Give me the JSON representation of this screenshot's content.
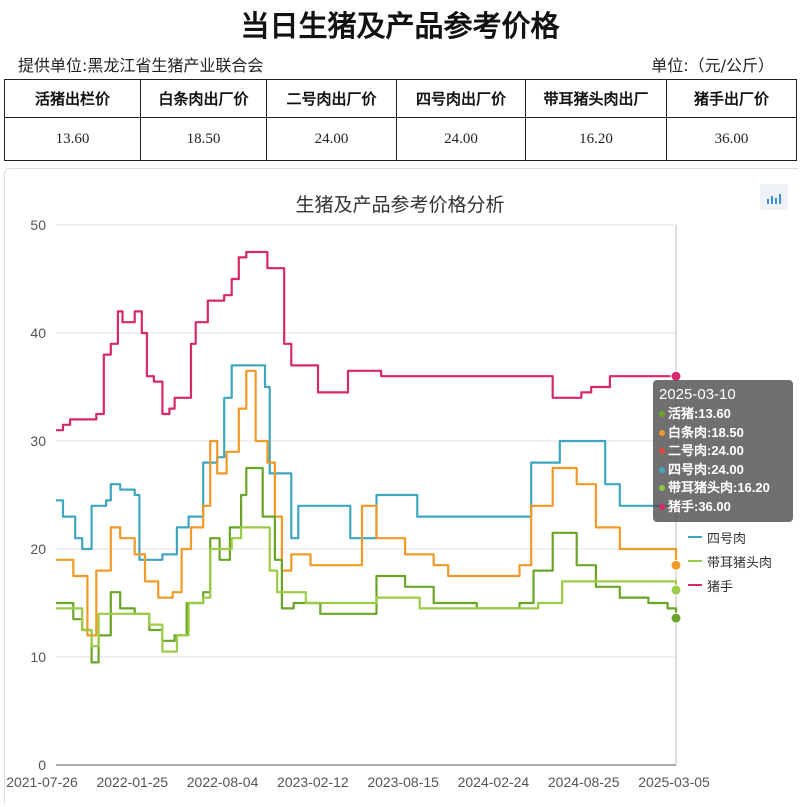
{
  "header": {
    "title": "当日生猪及产品参考价格",
    "provider": "提供单位:黑龙江省生猪产业联合会",
    "unit": "单位:（元/公斤）"
  },
  "price_table": {
    "headers": [
      "活猪出栏价",
      "白条肉出厂价",
      "二号肉出厂价",
      "四号肉出厂价",
      "带耳猪头肉出厂",
      "猪手出厂价"
    ],
    "values": [
      "13.60",
      "18.50",
      "24.00",
      "24.00",
      "16.20",
      "36.00"
    ]
  },
  "tooltip": {
    "date": "2025-03-10",
    "rows": [
      {
        "label": "活猪:13.60",
        "color": "#6aa527"
      },
      {
        "label": "白条肉:18.50",
        "color": "#f09a28"
      },
      {
        "label": "二号肉:24.00",
        "color": "#e2453c"
      },
      {
        "label": "四号肉:24.00",
        "color": "#3ea7c0"
      },
      {
        "label": "带耳猪头肉:16.20",
        "color": "#8dc63f"
      },
      {
        "label": "猪手:36.00",
        "color": "#d6286a"
      }
    ]
  },
  "legend": {
    "items": [
      {
        "label": "四号肉",
        "color": "#3ea7c0"
      },
      {
        "label": "带耳猪头肉",
        "color": "#9ccc45"
      },
      {
        "label": "猪手",
        "color": "#d6286a"
      }
    ]
  },
  "chart_data": {
    "type": "line",
    "title": "生猪及产品参考价格分析",
    "ylim": [
      0,
      50
    ],
    "yticks": [
      0,
      10,
      20,
      30,
      40,
      50
    ],
    "x_tick_labels": [
      "2021-07-26",
      "2022-01-25",
      "2022-08-04",
      "2023-02-12",
      "2023-08-15",
      "2024-02-24",
      "2024-08-25",
      "2025-03-05"
    ],
    "x_range": [
      "2021-07-26",
      "2025-03-10"
    ],
    "series": [
      {
        "name": "猪手",
        "color": "#d6286a",
        "points": [
          [
            "2021-07-26",
            31
          ],
          [
            "2021-08-10",
            31.5
          ],
          [
            "2021-08-25",
            32
          ],
          [
            "2021-10-20",
            32.5
          ],
          [
            "2021-11-05",
            38
          ],
          [
            "2021-11-20",
            39
          ],
          [
            "2021-12-05",
            42
          ],
          [
            "2021-12-15",
            41
          ],
          [
            "2022-01-10",
            42
          ],
          [
            "2022-01-25",
            40
          ],
          [
            "2022-02-05",
            36
          ],
          [
            "2022-02-20",
            35.5
          ],
          [
            "2022-03-10",
            32.5
          ],
          [
            "2022-03-25",
            33
          ],
          [
            "2022-04-05",
            34
          ],
          [
            "2022-05-10",
            39
          ],
          [
            "2022-05-20",
            41
          ],
          [
            "2022-06-15",
            43
          ],
          [
            "2022-07-20",
            43.5
          ],
          [
            "2022-08-05",
            45
          ],
          [
            "2022-08-20",
            47
          ],
          [
            "2022-09-05",
            47.5
          ],
          [
            "2022-10-20",
            46
          ],
          [
            "2022-11-25",
            39
          ],
          [
            "2022-12-10",
            37
          ],
          [
            "2023-02-05",
            34.5
          ],
          [
            "2023-04-10",
            36.5
          ],
          [
            "2023-06-10",
            36.5
          ],
          [
            "2023-06-20",
            36
          ],
          [
            "2024-06-20",
            34
          ],
          [
            "2024-08-20",
            34.5
          ],
          [
            "2024-09-10",
            35
          ],
          [
            "2024-10-20",
            36
          ],
          [
            "2025-03-10",
            36
          ]
        ]
      },
      {
        "name": "四号肉",
        "color": "#3ea7c0",
        "points": [
          [
            "2021-07-26",
            24.5
          ],
          [
            "2021-08-10",
            23
          ],
          [
            "2021-09-05",
            21
          ],
          [
            "2021-09-20",
            20
          ],
          [
            "2021-10-10",
            24
          ],
          [
            "2021-11-10",
            24.5
          ],
          [
            "2021-11-20",
            26
          ],
          [
            "2021-12-10",
            25.5
          ],
          [
            "2022-01-10",
            25
          ],
          [
            "2022-01-20",
            19
          ],
          [
            "2022-03-10",
            19.5
          ],
          [
            "2022-04-10",
            22
          ],
          [
            "2022-05-05",
            23
          ],
          [
            "2022-06-05",
            28
          ],
          [
            "2022-07-05",
            28.5
          ],
          [
            "2022-07-20",
            34
          ],
          [
            "2022-08-05",
            37
          ],
          [
            "2022-10-15",
            35
          ],
          [
            "2022-10-25",
            27
          ],
          [
            "2022-12-10",
            21
          ],
          [
            "2022-12-25",
            24
          ],
          [
            "2023-04-15",
            21
          ],
          [
            "2023-06-10",
            25
          ],
          [
            "2023-09-05",
            23
          ],
          [
            "2024-04-05",
            23
          ],
          [
            "2024-05-05",
            28
          ],
          [
            "2024-07-05",
            30
          ],
          [
            "2024-10-10",
            26
          ],
          [
            "2024-11-10",
            24
          ],
          [
            "2025-03-10",
            24
          ]
        ]
      },
      {
        "name": "白条肉",
        "color": "#f09a28",
        "points": [
          [
            "2021-07-26",
            19
          ],
          [
            "2021-09-01",
            17.5
          ],
          [
            "2021-10-01",
            12
          ],
          [
            "2021-10-20",
            18
          ],
          [
            "2021-11-20",
            22
          ],
          [
            "2021-12-10",
            21
          ],
          [
            "2022-01-10",
            19.5
          ],
          [
            "2022-02-01",
            17
          ],
          [
            "2022-03-01",
            15.5
          ],
          [
            "2022-04-01",
            16
          ],
          [
            "2022-04-20",
            20
          ],
          [
            "2022-05-10",
            22
          ],
          [
            "2022-06-05",
            24
          ],
          [
            "2022-06-20",
            30
          ],
          [
            "2022-07-05",
            27
          ],
          [
            "2022-07-25",
            29
          ],
          [
            "2022-08-20",
            33
          ],
          [
            "2022-09-05",
            36.5
          ],
          [
            "2022-09-25",
            30
          ],
          [
            "2022-10-20",
            28
          ],
          [
            "2022-11-05",
            23
          ],
          [
            "2022-11-20",
            18
          ],
          [
            "2022-12-10",
            19.5
          ],
          [
            "2023-01-20",
            18.5
          ],
          [
            "2023-04-20",
            18.5
          ],
          [
            "2023-05-10",
            24
          ],
          [
            "2023-06-10",
            21
          ],
          [
            "2023-08-10",
            19.5
          ],
          [
            "2023-10-10",
            18.5
          ],
          [
            "2023-11-10",
            17.5
          ],
          [
            "2024-03-10",
            17.5
          ],
          [
            "2024-04-10",
            18.5
          ],
          [
            "2024-05-05",
            24
          ],
          [
            "2024-06-20",
            27.5
          ],
          [
            "2024-08-10",
            26
          ],
          [
            "2024-09-20",
            22
          ],
          [
            "2024-11-10",
            20
          ],
          [
            "2025-01-10",
            20
          ],
          [
            "2025-02-10",
            20
          ],
          [
            "2025-03-10",
            18.5
          ]
        ]
      },
      {
        "name": "活猪",
        "color": "#6aa527",
        "points": [
          [
            "2021-07-26",
            15
          ],
          [
            "2021-09-01",
            13.5
          ],
          [
            "2021-09-20",
            12.5
          ],
          [
            "2021-10-10",
            9.5
          ],
          [
            "2021-10-25",
            12
          ],
          [
            "2021-11-20",
            16
          ],
          [
            "2021-12-10",
            14.5
          ],
          [
            "2022-01-10",
            14
          ],
          [
            "2022-02-10",
            12.5
          ],
          [
            "2022-03-10",
            11.5
          ],
          [
            "2022-04-05",
            12
          ],
          [
            "2022-05-01",
            15
          ],
          [
            "2022-06-05",
            16
          ],
          [
            "2022-06-20",
            21
          ],
          [
            "2022-07-10",
            19
          ],
          [
            "2022-08-01",
            22
          ],
          [
            "2022-08-25",
            25
          ],
          [
            "2022-09-05",
            27.5
          ],
          [
            "2022-10-10",
            23
          ],
          [
            "2022-11-05",
            19
          ],
          [
            "2022-11-20",
            14.5
          ],
          [
            "2022-12-15",
            15
          ],
          [
            "2023-02-10",
            14
          ],
          [
            "2023-05-10",
            14
          ],
          [
            "2023-06-10",
            17.5
          ],
          [
            "2023-08-10",
            16.5
          ],
          [
            "2023-10-10",
            15
          ],
          [
            "2024-01-10",
            14.5
          ],
          [
            "2024-04-10",
            15
          ],
          [
            "2024-05-10",
            18
          ],
          [
            "2024-06-20",
            21.5
          ],
          [
            "2024-08-10",
            18.5
          ],
          [
            "2024-09-20",
            16.5
          ],
          [
            "2024-11-10",
            15.5
          ],
          [
            "2025-01-10",
            15
          ],
          [
            "2025-02-20",
            14.5
          ],
          [
            "2025-03-10",
            13.6
          ]
        ]
      },
      {
        "name": "带耳猪头肉",
        "color": "#9ccc45",
        "points": [
          [
            "2021-07-26",
            14.5
          ],
          [
            "2021-09-01",
            14.5
          ],
          [
            "2021-09-20",
            12.5
          ],
          [
            "2021-10-10",
            11
          ],
          [
            "2021-10-25",
            14
          ],
          [
            "2022-01-10",
            14
          ],
          [
            "2022-02-10",
            13
          ],
          [
            "2022-03-10",
            10.5
          ],
          [
            "2022-04-10",
            12
          ],
          [
            "2022-05-05",
            15
          ],
          [
            "2022-06-05",
            15.5
          ],
          [
            "2022-06-20",
            20
          ],
          [
            "2022-08-05",
            21
          ],
          [
            "2022-08-25",
            22
          ],
          [
            "2022-10-05",
            22
          ],
          [
            "2022-10-25",
            18
          ],
          [
            "2022-11-10",
            16
          ],
          [
            "2023-01-10",
            15
          ],
          [
            "2023-03-10",
            15
          ],
          [
            "2023-06-10",
            15.5
          ],
          [
            "2023-09-10",
            14.5
          ],
          [
            "2024-05-05",
            14.5
          ],
          [
            "2024-05-20",
            15
          ],
          [
            "2024-07-10",
            17
          ],
          [
            "2025-03-10",
            16.2
          ]
        ]
      },
      {
        "name": "二号肉",
        "color": "#e2453c",
        "points": [
          [
            "2025-03-10",
            24
          ]
        ]
      }
    ]
  }
}
